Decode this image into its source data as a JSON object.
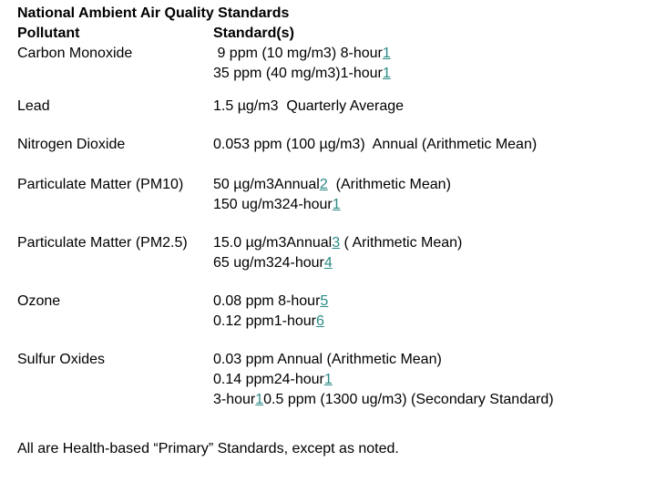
{
  "title": "National Ambient Air Quality Standards",
  "header": {
    "pollutant": "Pollutant",
    "standard": "Standard(s)"
  },
  "rows": [
    {
      "pollutant": "Carbon Monoxide",
      "lines": [
        [
          {
            "t": " 9 ppm (10 mg/m3) 8-hour"
          },
          {
            "t": "1",
            "link": true
          }
        ],
        [
          {
            "t": "35 ppm (40 mg/m3)1-hour"
          },
          {
            "t": "1",
            "link": true
          }
        ]
      ]
    },
    {
      "pollutant": "Lead",
      "lines": [
        [
          {
            "t": "1.5 µg/m3  Quarterly Average"
          }
        ]
      ]
    },
    {
      "pollutant": "Nitrogen Dioxide",
      "lines": [
        [
          {
            "t": "0.053 ppm (100 µg/m3)  Annual (Arithmetic Mean)"
          }
        ]
      ]
    },
    {
      "pollutant": "Particulate Matter (PM10)",
      "lines": [
        [
          {
            "t": "50 µg/m3Annual"
          },
          {
            "t": "2",
            "link": true
          },
          {
            "t": "  (Arithmetic Mean)"
          }
        ],
        [
          {
            "t": "150 ug/m324-hour"
          },
          {
            "t": "1",
            "link": true
          }
        ]
      ]
    },
    {
      "pollutant": "Particulate Matter (PM2.5)",
      "lines": [
        [
          {
            "t": "15.0 µg/m3Annual"
          },
          {
            "t": "3",
            "link": true
          },
          {
            "t": " ( Arithmetic Mean)"
          }
        ],
        [
          {
            "t": "65 ug/m324-hour"
          },
          {
            "t": "4",
            "link": true
          }
        ]
      ]
    },
    {
      "pollutant": "Ozone",
      "lines": [
        [
          {
            "t": "0.08 ppm 8-hour"
          },
          {
            "t": "5",
            "link": true
          }
        ],
        [
          {
            "t": "0.12 ppm1-hour"
          },
          {
            "t": "6",
            "link": true
          }
        ]
      ]
    },
    {
      "pollutant": "Sulfur Oxides",
      "lines": [
        [
          {
            "t": "0.03 ppm Annual (Arithmetic Mean)"
          }
        ],
        [
          {
            "t": "0.14 ppm24-hour"
          },
          {
            "t": "1",
            "link": true
          }
        ],
        [
          {
            "t": "3-hour"
          },
          {
            "t": "1",
            "link": true
          },
          {
            "t": "0.5 ppm (1300 ug/m3) (Secondary Standard)"
          }
        ]
      ]
    }
  ],
  "footer": "All are Health-based “Primary” Standards, except as noted.",
  "colors": {
    "link": "#2a8a86",
    "text": "#000000",
    "background": "#ffffff"
  }
}
